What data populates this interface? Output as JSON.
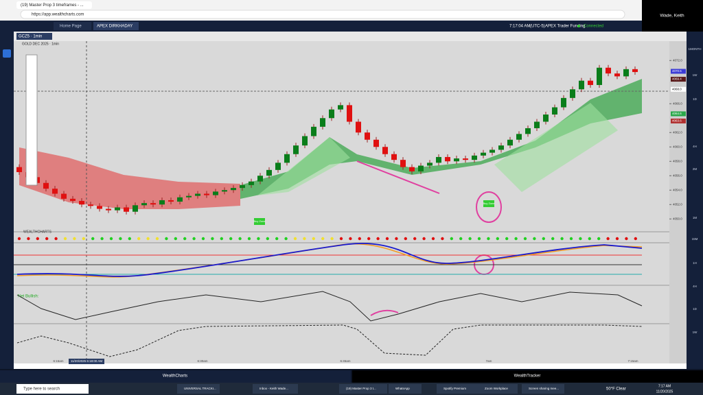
{
  "browser": {
    "tab": "(19) Master Prop 3 timeframes - ...",
    "url": "https://app.wealthcharts.com"
  },
  "user": "Wade, Keith",
  "app_tabs": [
    "Home Page",
    "APEX DIRKHADAY"
  ],
  "status": {
    "time": "7:17:04 AM",
    "zone": "(UTC-5)",
    "account": "APEX Trader Funding",
    "connection": "Connected"
  },
  "chart": {
    "type": "candlestick",
    "symbol_tab": "GCZ5 · 1min",
    "title": "GOLD DEC 2025 · 1min",
    "indicator": "WEALTHCHARTS",
    "sentiment": "Net Bullish:",
    "zones": [
      "Buy Zone",
      "Buy Zone"
    ],
    "cursor_time": "11/20/2025 6:18:00 AM",
    "times": [
      "6:15am",
      "6:30am",
      "6:45am",
      "7am",
      "7:15am"
    ],
    "ylim": [
      4048.5,
      4074.5
    ],
    "yticks": [
      {
        "value": 4050,
        "label": "4050.0"
      },
      {
        "value": 4052,
        "label": "4052.0"
      },
      {
        "value": 4054,
        "label": "4054.0"
      },
      {
        "value": 4056,
        "label": "4056.0"
      },
      {
        "value": 4058,
        "label": "4058.0"
      },
      {
        "value": 4060,
        "label": "4060.0"
      },
      {
        "value": 4062,
        "label": "4062.0"
      },
      {
        "value": 4066,
        "label": "4066.0"
      },
      {
        "value": 4072,
        "label": "4072.0"
      }
    ],
    "price_tags": [
      {
        "value": 4070.5,
        "label": "4070.5",
        "color": "#3b3bd6"
      },
      {
        "value": 4069.4,
        "label": "4069.4",
        "color": "#5a1a1a"
      },
      {
        "value": 4068.0,
        "label": "4068.0",
        "color": "#ffffff"
      },
      {
        "value": 4064.6,
        "label": "4064.6",
        "color": "#2aa84a"
      },
      {
        "value": 4063.6,
        "label": "4063.6",
        "color": "#b03030"
      }
    ],
    "candles": {
      "open": [
        4057.2,
        4056.5,
        4055.8,
        4055.0,
        4054.2,
        4053.5,
        4052.8,
        4052.5,
        4052.0,
        4051.8,
        4051.4,
        4051.2,
        4051.6,
        4051.0,
        4051.9,
        4052.2,
        4052.0,
        4052.6,
        4052.4,
        4053.0,
        4053.2,
        4053.5,
        4053.3,
        4053.8,
        4054.0,
        4054.3,
        4054.7,
        4055.2,
        4056.0,
        4056.8,
        4057.8,
        4059.0,
        4060.2,
        4061.5,
        4062.8,
        4064.0,
        4065.2,
        4065.8,
        4063.5,
        4062.0,
        4061.0,
        4060.0,
        4059.0,
        4058.2,
        4057.2,
        4056.6,
        4057.4,
        4057.8,
        4058.6,
        4058.0,
        4058.4,
        4058.2,
        4058.8,
        4059.2,
        4059.6,
        4060.2,
        4061.0,
        4061.8,
        4062.6,
        4063.5,
        4064.5,
        4065.5,
        4066.8,
        4068.0,
        4069.2,
        4068.6,
        4071.0,
        4070.2,
        4069.8,
        4070.8
      ],
      "close": [
        4056.5,
        4055.8,
        4055.0,
        4054.2,
        4053.5,
        4052.8,
        4052.5,
        4052.0,
        4051.8,
        4051.4,
        4051.2,
        4051.6,
        4051.0,
        4051.9,
        4052.2,
        4052.0,
        4052.6,
        4052.4,
        4053.0,
        4053.2,
        4053.5,
        4053.3,
        4053.8,
        4054.0,
        4054.3,
        4054.7,
        4055.2,
        4056.0,
        4056.8,
        4057.8,
        4059.0,
        4060.2,
        4061.5,
        4062.8,
        4064.0,
        4065.2,
        4065.8,
        4063.5,
        4062.0,
        4061.0,
        4060.0,
        4059.0,
        4058.2,
        4057.2,
        4056.6,
        4057.4,
        4057.8,
        4058.6,
        4058.0,
        4058.4,
        4058.2,
        4058.8,
        4059.2,
        4059.6,
        4060.2,
        4061.0,
        4061.8,
        4062.6,
        4063.5,
        4064.5,
        4065.5,
        4066.8,
        4068.0,
        4069.2,
        4068.6,
        4071.0,
        4070.2,
        4069.8,
        4070.8,
        4070.4
      ]
    }
  },
  "timeframes": [
    "1MONTH",
    "1W",
    "1D",
    "4H",
    "2M",
    "1M",
    "15M",
    "1H",
    "4H",
    "1D",
    "1W"
  ],
  "footer": [
    "WealthCharts",
    "WealthTracker"
  ],
  "taskbar": {
    "search": "Type here to search",
    "apps": [
      "UNIVERSAL TRACKI...",
      "Inbox - Keith Wade...",
      "(19) Master Prop 3 t...",
      "WhatsApp",
      "Spotify Premium",
      "Zoom Workplace",
      "Screen sharing mee..."
    ],
    "weather": "50°F Clear",
    "time": "7:17 AM",
    "date": "11/20/2025"
  }
}
